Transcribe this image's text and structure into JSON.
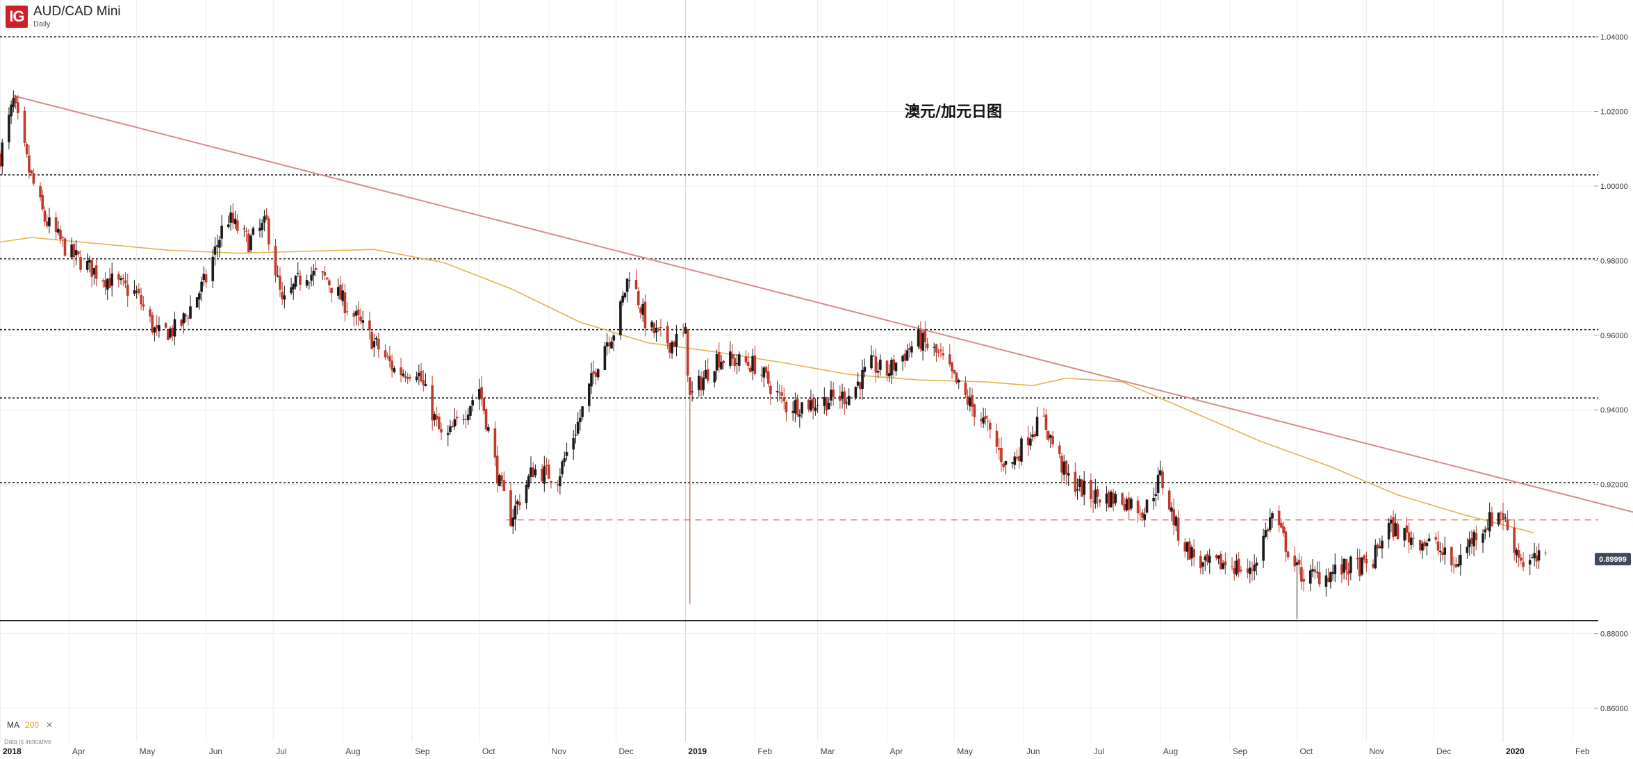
{
  "header": {
    "logo_text": "IG",
    "instrument": "AUD/CAD Mini",
    "timeframe": "Daily"
  },
  "annotation": "澳元/加元日图",
  "indicator": {
    "name": "MA",
    "period": "200",
    "close_symbol": "✕"
  },
  "footer_note": "Data is indicative",
  "colors": {
    "bull": "#1a1a1a",
    "bear": "#c0392b",
    "ma": "#e3b24f",
    "trendline": "#d98a8a",
    "support_dashed": "#e26b5f",
    "price_badge": "#3d4a5a",
    "grid": "#ececec"
  },
  "chart_data": {
    "type": "candlestick",
    "timeframe": "Daily",
    "ylim": [
      0.852,
      1.042
    ],
    "yticks": [
      "1.04000",
      "1.02000",
      "1.00000",
      "0.98000",
      "0.96000",
      "0.94000",
      "0.92000",
      "0.88000",
      "0.86000"
    ],
    "ytick_values": [
      1.04,
      1.02,
      1.0,
      0.98,
      0.96,
      0.94,
      0.92,
      0.88,
      0.86
    ],
    "x_range": [
      "2018-03-01",
      "2020-02-28"
    ],
    "xticks": [
      {
        "date": "2018-03-01",
        "label": "2018",
        "bold": true
      },
      {
        "date": "2018-04-01",
        "label": "Apr"
      },
      {
        "date": "2018-05-01",
        "label": "May"
      },
      {
        "date": "2018-06-01",
        "label": "Jun"
      },
      {
        "date": "2018-07-01",
        "label": "Jul"
      },
      {
        "date": "2018-08-01",
        "label": "Aug"
      },
      {
        "date": "2018-09-01",
        "label": "Sep"
      },
      {
        "date": "2018-10-01",
        "label": "Oct"
      },
      {
        "date": "2018-11-01",
        "label": "Nov"
      },
      {
        "date": "2018-12-01",
        "label": "Dec"
      },
      {
        "date": "2019-01-01",
        "label": "2019",
        "bold": true
      },
      {
        "date": "2019-02-01",
        "label": "Feb"
      },
      {
        "date": "2019-03-01",
        "label": "Mar"
      },
      {
        "date": "2019-04-01",
        "label": "Apr"
      },
      {
        "date": "2019-05-01",
        "label": "May"
      },
      {
        "date": "2019-06-01",
        "label": "Jun"
      },
      {
        "date": "2019-07-01",
        "label": "Jul"
      },
      {
        "date": "2019-08-01",
        "label": "Aug"
      },
      {
        "date": "2019-09-01",
        "label": "Sep"
      },
      {
        "date": "2019-10-01",
        "label": "Oct"
      },
      {
        "date": "2019-11-01",
        "label": "Nov"
      },
      {
        "date": "2019-12-01",
        "label": "Dec"
      },
      {
        "date": "2020-01-01",
        "label": "2020",
        "bold": true
      },
      {
        "date": "2020-02-01",
        "label": "Feb"
      }
    ],
    "close_path": [
      [
        "2018-03-01",
        1.008
      ],
      [
        "2018-03-07",
        1.0225
      ],
      [
        "2018-03-14",
        1.004
      ],
      [
        "2018-03-21",
        0.991
      ],
      [
        "2018-04-01",
        0.982
      ],
      [
        "2018-04-15",
        0.976
      ],
      [
        "2018-05-01",
        0.971
      ],
      [
        "2018-05-10",
        0.96
      ],
      [
        "2018-05-20",
        0.962
      ],
      [
        "2018-06-01",
        0.975
      ],
      [
        "2018-06-10",
        0.992
      ],
      [
        "2018-06-20",
        0.985
      ],
      [
        "2018-06-28",
        0.99
      ],
      [
        "2018-07-05",
        0.968
      ],
      [
        "2018-07-15",
        0.977
      ],
      [
        "2018-07-25",
        0.975
      ],
      [
        "2018-08-05",
        0.966
      ],
      [
        "2018-08-15",
        0.958
      ],
      [
        "2018-08-25",
        0.95
      ],
      [
        "2018-09-03",
        0.951
      ],
      [
        "2018-09-15",
        0.931
      ],
      [
        "2018-09-25",
        0.94
      ],
      [
        "2018-10-01",
        0.946
      ],
      [
        "2018-10-10",
        0.92
      ],
      [
        "2018-10-15",
        0.911
      ],
      [
        "2018-10-25",
        0.924
      ],
      [
        "2018-11-05",
        0.922
      ],
      [
        "2018-11-15",
        0.938
      ],
      [
        "2018-11-25",
        0.957
      ],
      [
        "2018-12-01",
        0.962
      ],
      [
        "2018-12-07",
        0.977
      ],
      [
        "2018-12-15",
        0.962
      ],
      [
        "2018-12-25",
        0.958
      ],
      [
        "2019-01-01",
        0.96
      ],
      [
        "2019-01-03",
        0.943
      ],
      [
        "2019-01-15",
        0.954
      ],
      [
        "2019-02-01",
        0.952
      ],
      [
        "2019-02-15",
        0.941
      ],
      [
        "2019-03-01",
        0.942
      ],
      [
        "2019-03-15",
        0.944
      ],
      [
        "2019-03-25",
        0.952
      ],
      [
        "2019-04-01",
        0.95
      ],
      [
        "2019-04-15",
        0.959
      ],
      [
        "2019-04-25",
        0.954
      ],
      [
        "2019-05-05",
        0.944
      ],
      [
        "2019-05-15",
        0.936
      ],
      [
        "2019-05-25",
        0.924
      ],
      [
        "2019-06-05",
        0.935
      ],
      [
        "2019-06-10",
        0.937
      ],
      [
        "2019-06-20",
        0.922
      ],
      [
        "2019-07-01",
        0.917
      ],
      [
        "2019-07-15",
        0.916
      ],
      [
        "2019-07-25",
        0.913
      ],
      [
        "2019-08-01",
        0.922
      ],
      [
        "2019-08-10",
        0.905
      ],
      [
        "2019-08-20",
        0.898
      ],
      [
        "2019-09-01",
        0.899
      ],
      [
        "2019-09-10",
        0.896
      ],
      [
        "2019-09-20",
        0.912
      ],
      [
        "2019-10-01",
        0.897
      ],
      [
        "2019-10-05",
        0.895
      ],
      [
        "2019-10-15",
        0.896
      ],
      [
        "2019-10-25",
        0.898
      ],
      [
        "2019-11-03",
        0.898
      ],
      [
        "2019-11-10",
        0.909
      ],
      [
        "2019-11-20",
        0.906
      ],
      [
        "2019-12-01",
        0.904
      ],
      [
        "2019-12-10",
        0.898
      ],
      [
        "2019-12-20",
        0.907
      ],
      [
        "2019-12-31",
        0.913
      ],
      [
        "2020-01-05",
        0.905
      ],
      [
        "2020-01-10",
        0.899
      ],
      [
        "2020-01-20",
        0.9
      ]
    ],
    "spikes": [
      {
        "date": "2019-01-03",
        "low": 0.888
      },
      {
        "date": "2019-10-01",
        "low": 0.884
      }
    ],
    "moving_average": {
      "name": "MA 200",
      "points": [
        [
          "2018-03-01",
          0.985
        ],
        [
          "2018-03-15",
          0.9862
        ],
        [
          "2018-04-15",
          0.9845
        ],
        [
          "2018-05-15",
          0.9828
        ],
        [
          "2018-06-15",
          0.982
        ],
        [
          "2018-07-15",
          0.9825
        ],
        [
          "2018-08-15",
          0.983
        ],
        [
          "2018-09-15",
          0.9795
        ],
        [
          "2018-10-15",
          0.9725
        ],
        [
          "2018-11-15",
          0.9635
        ],
        [
          "2018-12-15",
          0.958
        ],
        [
          "2019-01-15",
          0.9555
        ],
        [
          "2019-02-15",
          0.9525
        ],
        [
          "2019-03-15",
          0.9495
        ],
        [
          "2019-04-15",
          0.948
        ],
        [
          "2019-05-15",
          0.9475
        ],
        [
          "2019-06-05",
          0.9465
        ],
        [
          "2019-06-20",
          0.9485
        ],
        [
          "2019-07-15",
          0.9475
        ],
        [
          "2019-08-15",
          0.9395
        ],
        [
          "2019-09-15",
          0.9315
        ],
        [
          "2019-10-15",
          0.925
        ],
        [
          "2019-11-15",
          0.9172
        ],
        [
          "2019-12-15",
          0.9118
        ],
        [
          "2020-01-15",
          0.907
        ]
      ]
    },
    "trendline": {
      "from": [
        "2018-03-07",
        1.0242
      ],
      "to": [
        "2020-02-28",
        0.9126
      ]
    },
    "horizontal_levels": [
      1.04,
      1.003,
      0.9805,
      0.9615,
      0.9432,
      0.9205,
      0.8835
    ],
    "support_dashed": {
      "from_date": "2018-10-13",
      "value": 0.9105
    },
    "last_price": "0.89999",
    "last_value": 0.89999
  }
}
